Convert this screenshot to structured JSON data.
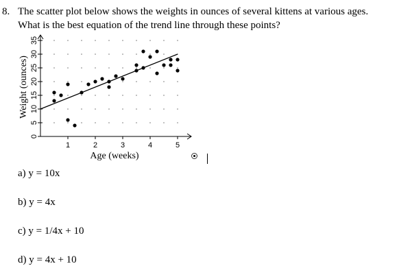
{
  "question": {
    "number": "8.",
    "line1": "The scatter plot below shows the weights in ounces of several kittens at various ages.",
    "line2": "What is the best equation of the trend line through these points?"
  },
  "chart_data": {
    "type": "scatter",
    "xlabel": "Age (weeks)",
    "ylabel": "Weight (ounces)",
    "xlim": [
      0,
      5.5
    ],
    "ylim": [
      0,
      37
    ],
    "x_ticks": [
      1,
      2,
      3,
      4,
      5
    ],
    "y_ticks": [
      0,
      5,
      10,
      15,
      20,
      25,
      30,
      35
    ],
    "grid": "dotted",
    "points": [
      {
        "x": 0.5,
        "y": 16
      },
      {
        "x": 0.5,
        "y": 13
      },
      {
        "x": 0.75,
        "y": 15
      },
      {
        "x": 1.0,
        "y": 19
      },
      {
        "x": 1.0,
        "y": 6
      },
      {
        "x": 1.25,
        "y": 4
      },
      {
        "x": 1.5,
        "y": 16
      },
      {
        "x": 1.75,
        "y": 19
      },
      {
        "x": 2.0,
        "y": 20
      },
      {
        "x": 2.25,
        "y": 21
      },
      {
        "x": 2.5,
        "y": 20
      },
      {
        "x": 2.5,
        "y": 18
      },
      {
        "x": 2.75,
        "y": 22
      },
      {
        "x": 3.0,
        "y": 21
      },
      {
        "x": 3.5,
        "y": 26
      },
      {
        "x": 3.5,
        "y": 24
      },
      {
        "x": 3.75,
        "y": 25
      },
      {
        "x": 3.75,
        "y": 31
      },
      {
        "x": 4.0,
        "y": 29
      },
      {
        "x": 4.25,
        "y": 23
      },
      {
        "x": 4.25,
        "y": 31
      },
      {
        "x": 4.5,
        "y": 26
      },
      {
        "x": 4.75,
        "y": 28
      },
      {
        "x": 4.75,
        "y": 26
      },
      {
        "x": 5.0,
        "y": 28
      },
      {
        "x": 5.0,
        "y": 24
      }
    ],
    "trend_line": {
      "x1": 0,
      "y1": 10,
      "x2": 5,
      "y2": 30
    }
  },
  "options": [
    {
      "letter": "a)",
      "text": "y = 10x"
    },
    {
      "letter": "b)",
      "text": "y = 4x"
    },
    {
      "letter": "c)",
      "text": "y = 1/4x + 10"
    },
    {
      "letter": "d)",
      "text": "y = 4x + 10"
    }
  ]
}
